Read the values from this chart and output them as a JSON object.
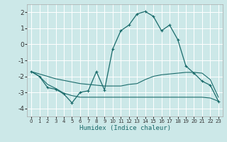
{
  "xlabel": "Humidex (Indice chaleur)",
  "xlim": [
    -0.5,
    23.5
  ],
  "ylim": [
    -4.5,
    2.5
  ],
  "yticks": [
    -4,
    -3,
    -2,
    -1,
    0,
    1,
    2
  ],
  "xticks": [
    0,
    1,
    2,
    3,
    4,
    5,
    6,
    7,
    8,
    9,
    10,
    11,
    12,
    13,
    14,
    15,
    16,
    17,
    18,
    19,
    20,
    21,
    22,
    23
  ],
  "bg_color": "#cce8e8",
  "grid_color": "#ffffff",
  "line_color": "#1a6b6b",
  "line1_x": [
    0,
    1,
    2,
    3,
    4,
    5,
    6,
    7,
    8,
    9,
    10,
    11,
    12,
    13,
    14,
    15,
    16,
    17,
    18,
    19,
    20,
    21,
    22,
    23
  ],
  "line1_y": [
    -1.7,
    -2.0,
    -2.7,
    -2.8,
    -3.1,
    -3.65,
    -3.0,
    -2.9,
    -1.7,
    -2.85,
    -0.3,
    0.85,
    1.2,
    1.9,
    2.05,
    1.75,
    0.85,
    1.2,
    0.3,
    -1.35,
    -1.8,
    -2.3,
    -2.55,
    -3.55
  ],
  "line2_x": [
    0,
    1,
    2,
    3,
    4,
    5,
    6,
    7,
    8,
    9,
    10,
    11,
    12,
    13,
    14,
    15,
    16,
    17,
    18,
    19,
    20,
    21,
    22,
    23
  ],
  "line2_y": [
    -1.7,
    -1.85,
    -2.0,
    -2.15,
    -2.25,
    -2.35,
    -2.45,
    -2.5,
    -2.55,
    -2.6,
    -2.6,
    -2.6,
    -2.5,
    -2.45,
    -2.2,
    -2.0,
    -1.9,
    -1.85,
    -1.8,
    -1.75,
    -1.75,
    -1.8,
    -2.2,
    -3.3
  ],
  "line3_x": [
    0,
    1,
    2,
    3,
    4,
    5,
    6,
    7,
    8,
    9,
    10,
    11,
    12,
    13,
    14,
    15,
    16,
    17,
    18,
    19,
    20,
    21,
    22,
    23
  ],
  "line3_y": [
    -1.7,
    -2.0,
    -2.5,
    -2.75,
    -3.05,
    -3.2,
    -3.3,
    -3.3,
    -3.3,
    -3.3,
    -3.3,
    -3.3,
    -3.3,
    -3.3,
    -3.3,
    -3.3,
    -3.3,
    -3.3,
    -3.3,
    -3.3,
    -3.3,
    -3.3,
    -3.35,
    -3.55
  ],
  "marker": "+"
}
